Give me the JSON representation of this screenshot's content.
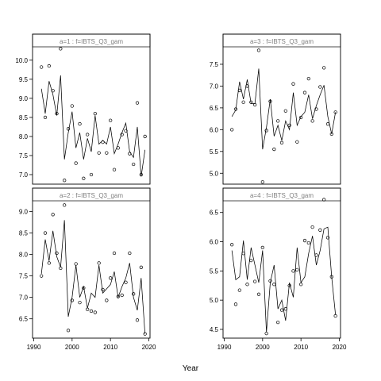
{
  "xlabel": "Year",
  "chart_data": [
    {
      "type": "line",
      "title": "a=1  :  f=IBTS_Q3_gam",
      "ylim": [
        6.75,
        10.35
      ],
      "yticks": [
        "7.0",
        "7.5",
        "8.0",
        "8.5",
        "9.0",
        "9.5",
        "10.0"
      ],
      "xticks": [],
      "points": [
        [
          1992,
          9.82
        ],
        [
          1993,
          8.5
        ],
        [
          1994,
          9.85
        ],
        [
          1995,
          9.2
        ],
        [
          1996,
          8.6
        ],
        [
          1997,
          10.3
        ],
        [
          1998,
          6.85
        ],
        [
          1999,
          8.2
        ],
        [
          2000,
          8.8
        ],
        [
          2001,
          7.3
        ],
        [
          2002,
          8.33
        ],
        [
          2003,
          6.9
        ],
        [
          2004,
          8.05
        ],
        [
          2005,
          7.0
        ],
        [
          2006,
          8.6
        ],
        [
          2007,
          7.57
        ],
        [
          2008,
          7.85
        ],
        [
          2009,
          7.57
        ],
        [
          2010,
          8.42
        ],
        [
          2011,
          7.13
        ],
        [
          2012,
          7.7
        ],
        [
          2013,
          8.05
        ],
        [
          2014,
          8.15
        ],
        [
          2015,
          7.55
        ],
        [
          2016,
          7.27
        ],
        [
          2017,
          8.88
        ],
        [
          2018,
          7.0
        ],
        [
          2019,
          8.0
        ]
      ],
      "line": [
        [
          1992,
          9.25
        ],
        [
          1993,
          8.6
        ],
        [
          1994,
          9.45
        ],
        [
          1995,
          9.1
        ],
        [
          1996,
          8.55
        ],
        [
          1997,
          9.6
        ],
        [
          1998,
          7.4
        ],
        [
          1999,
          8.1
        ],
        [
          2000,
          8.65
        ],
        [
          2001,
          7.7
        ],
        [
          2002,
          8.1
        ],
        [
          2003,
          7.4
        ],
        [
          2004,
          7.95
        ],
        [
          2005,
          7.6
        ],
        [
          2006,
          8.55
        ],
        [
          2007,
          7.8
        ],
        [
          2008,
          7.9
        ],
        [
          2009,
          7.8
        ],
        [
          2010,
          8.25
        ],
        [
          2011,
          7.55
        ],
        [
          2012,
          7.8
        ],
        [
          2013,
          8.1
        ],
        [
          2014,
          8.35
        ],
        [
          2015,
          7.6
        ],
        [
          2016,
          7.45
        ],
        [
          2017,
          8.25
        ],
        [
          2018,
          6.95
        ],
        [
          2019,
          7.65
        ]
      ]
    },
    {
      "type": "line",
      "title": "a=3  :  f=IBTS_Q3_gam",
      "ylim": [
        4.75,
        7.9
      ],
      "yticks": [
        "5.0",
        "5.5",
        "6.0",
        "6.5",
        "7.0",
        "7.5"
      ],
      "xticks": [],
      "points": [
        [
          1992,
          6.0
        ],
        [
          1993,
          6.47
        ],
        [
          1994,
          6.9
        ],
        [
          1995,
          6.63
        ],
        [
          1996,
          7.0
        ],
        [
          1997,
          6.63
        ],
        [
          1998,
          6.57
        ],
        [
          1999,
          7.82
        ],
        [
          2000,
          4.8
        ],
        [
          2001,
          5.98
        ],
        [
          2002,
          6.65
        ],
        [
          2003,
          5.55
        ],
        [
          2004,
          6.2
        ],
        [
          2005,
          5.7
        ],
        [
          2006,
          6.43
        ],
        [
          2007,
          6.1
        ],
        [
          2008,
          7.05
        ],
        [
          2009,
          5.72
        ],
        [
          2010,
          6.28
        ],
        [
          2011,
          6.85
        ],
        [
          2012,
          7.17
        ],
        [
          2013,
          6.2
        ],
        [
          2014,
          6.47
        ],
        [
          2015,
          6.98
        ],
        [
          2016,
          7.42
        ],
        [
          2017,
          6.13
        ],
        [
          2018,
          5.9
        ],
        [
          2019,
          6.4
        ]
      ],
      "line": [
        [
          1992,
          6.3
        ],
        [
          1993,
          6.45
        ],
        [
          1994,
          7.1
        ],
        [
          1995,
          6.7
        ],
        [
          1996,
          7.15
        ],
        [
          1997,
          6.6
        ],
        [
          1998,
          6.6
        ],
        [
          1999,
          7.4
        ],
        [
          2000,
          5.55
        ],
        [
          2001,
          6.05
        ],
        [
          2002,
          6.7
        ],
        [
          2003,
          5.85
        ],
        [
          2004,
          6.1
        ],
        [
          2005,
          5.75
        ],
        [
          2006,
          6.2
        ],
        [
          2007,
          6.0
        ],
        [
          2008,
          6.85
        ],
        [
          2009,
          6.1
        ],
        [
          2010,
          6.3
        ],
        [
          2011,
          6.4
        ],
        [
          2012,
          6.8
        ],
        [
          2013,
          6.25
        ],
        [
          2014,
          6.55
        ],
        [
          2015,
          6.8
        ],
        [
          2016,
          7.02
        ],
        [
          2017,
          6.3
        ],
        [
          2018,
          5.9
        ],
        [
          2019,
          6.4
        ]
      ]
    },
    {
      "type": "line",
      "title": "a=2  :  f=IBTS_Q3_gam",
      "ylim": [
        6.05,
        9.25
      ],
      "yticks": [
        "6.5",
        "7.0",
        "7.5",
        "8.0",
        "8.5",
        "9.0"
      ],
      "xticks": [
        "1990",
        "2000",
        "2010",
        "2020"
      ],
      "points": [
        [
          1992,
          7.5
        ],
        [
          1993,
          8.5
        ],
        [
          1994,
          7.8
        ],
        [
          1995,
          8.93
        ],
        [
          1996,
          8.03
        ],
        [
          1997,
          7.68
        ],
        [
          1998,
          9.15
        ],
        [
          1999,
          6.23
        ],
        [
          2000,
          6.93
        ],
        [
          2001,
          7.78
        ],
        [
          2002,
          6.88
        ],
        [
          2003,
          7.22
        ],
        [
          2004,
          6.72
        ],
        [
          2005,
          6.68
        ],
        [
          2006,
          6.65
        ],
        [
          2007,
          7.8
        ],
        [
          2008,
          7.18
        ],
        [
          2009,
          6.93
        ],
        [
          2010,
          7.45
        ],
        [
          2011,
          8.03
        ],
        [
          2012,
          7.02
        ],
        [
          2013,
          7.05
        ],
        [
          2014,
          7.35
        ],
        [
          2015,
          8.03
        ],
        [
          2016,
          7.08
        ],
        [
          2017,
          6.47
        ],
        [
          2018,
          7.7
        ],
        [
          2019,
          6.15
        ]
      ],
      "line": [
        [
          1992,
          7.55
        ],
        [
          1993,
          8.35
        ],
        [
          1994,
          7.85
        ],
        [
          1995,
          8.55
        ],
        [
          1996,
          7.95
        ],
        [
          1997,
          7.7
        ],
        [
          1998,
          8.8
        ],
        [
          1999,
          6.55
        ],
        [
          2000,
          7.0
        ],
        [
          2001,
          7.75
        ],
        [
          2002,
          7.0
        ],
        [
          2003,
          7.25
        ],
        [
          2004,
          6.75
        ],
        [
          2005,
          7.1
        ],
        [
          2006,
          7.0
        ],
        [
          2007,
          7.75
        ],
        [
          2008,
          7.1
        ],
        [
          2009,
          7.2
        ],
        [
          2010,
          7.3
        ],
        [
          2011,
          7.6
        ],
        [
          2012,
          7.0
        ],
        [
          2013,
          7.25
        ],
        [
          2014,
          7.45
        ],
        [
          2015,
          7.8
        ],
        [
          2016,
          7.0
        ],
        [
          2017,
          6.7
        ],
        [
          2018,
          7.45
        ],
        [
          2019,
          6.15
        ]
      ]
    },
    {
      "type": "line",
      "title": "a=4  :  f=IBTS_Q3_gam",
      "ylim": [
        4.35,
        6.7
      ],
      "yticks": [
        "4.5",
        "5.0",
        "5.5",
        "6.0",
        "6.5"
      ],
      "xticks": [
        "1990",
        "2000",
        "2010",
        "2020"
      ],
      "points": [
        [
          1992,
          5.95
        ],
        [
          1993,
          4.93
        ],
        [
          1994,
          5.17
        ],
        [
          1995,
          5.8
        ],
        [
          1996,
          5.27
        ],
        [
          1997,
          5.68
        ],
        [
          1998,
          5.32
        ],
        [
          1999,
          5.1
        ],
        [
          2000,
          5.9
        ],
        [
          2001,
          4.43
        ],
        [
          2002,
          5.33
        ],
        [
          2003,
          5.27
        ],
        [
          2004,
          4.62
        ],
        [
          2005,
          4.83
        ],
        [
          2006,
          4.85
        ],
        [
          2007,
          5.25
        ],
        [
          2008,
          5.5
        ],
        [
          2009,
          5.52
        ],
        [
          2010,
          5.27
        ],
        [
          2011,
          6.02
        ],
        [
          2012,
          5.98
        ],
        [
          2013,
          6.25
        ],
        [
          2014,
          5.77
        ],
        [
          2015,
          6.2
        ],
        [
          2016,
          6.72
        ],
        [
          2017,
          6.07
        ],
        [
          2018,
          5.4
        ],
        [
          2019,
          4.73
        ]
      ],
      "line": [
        [
          1992,
          5.85
        ],
        [
          1993,
          5.35
        ],
        [
          1994,
          5.4
        ],
        [
          1995,
          6.02
        ],
        [
          1996,
          5.35
        ],
        [
          1997,
          5.9
        ],
        [
          1998,
          5.6
        ],
        [
          1999,
          5.3
        ],
        [
          2000,
          5.85
        ],
        [
          2001,
          4.45
        ],
        [
          2002,
          5.3
        ],
        [
          2003,
          5.6
        ],
        [
          2004,
          4.85
        ],
        [
          2005,
          5.0
        ],
        [
          2006,
          4.65
        ],
        [
          2007,
          5.3
        ],
        [
          2008,
          5.05
        ],
        [
          2009,
          5.9
        ],
        [
          2010,
          5.3
        ],
        [
          2011,
          5.4
        ],
        [
          2012,
          5.8
        ],
        [
          2013,
          6.1
        ],
        [
          2014,
          5.6
        ],
        [
          2015,
          5.85
        ],
        [
          2016,
          6.22
        ],
        [
          2017,
          6.25
        ],
        [
          2018,
          5.4
        ],
        [
          2019,
          4.75
        ]
      ]
    }
  ]
}
